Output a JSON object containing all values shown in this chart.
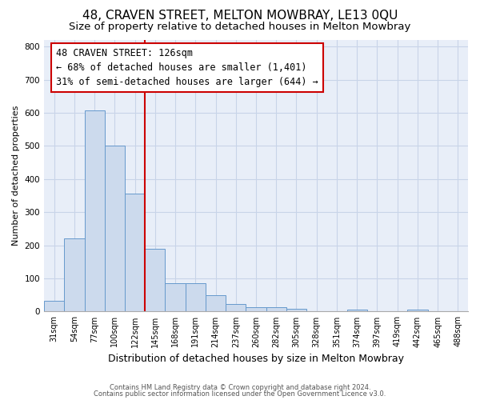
{
  "title1": "48, CRAVEN STREET, MELTON MOWBRAY, LE13 0QU",
  "title2": "Size of property relative to detached houses in Melton Mowbray",
  "xlabel": "Distribution of detached houses by size in Melton Mowbray",
  "ylabel": "Number of detached properties",
  "footer1": "Contains HM Land Registry data © Crown copyright and database right 2024.",
  "footer2": "Contains public sector information licensed under the Open Government Licence v3.0.",
  "categories": [
    "31sqm",
    "54sqm",
    "77sqm",
    "100sqm",
    "122sqm",
    "145sqm",
    "168sqm",
    "191sqm",
    "214sqm",
    "237sqm",
    "260sqm",
    "282sqm",
    "305sqm",
    "328sqm",
    "351sqm",
    "374sqm",
    "397sqm",
    "419sqm",
    "442sqm",
    "465sqm",
    "488sqm"
  ],
  "values": [
    32,
    220,
    608,
    500,
    355,
    190,
    85,
    85,
    50,
    22,
    14,
    14,
    8,
    0,
    0,
    6,
    0,
    0,
    6,
    0,
    0
  ],
  "bar_color": "#ccdaed",
  "bar_edge_color": "#6699cc",
  "annotation_line1": "48 CRAVEN STREET: 126sqm",
  "annotation_line2": "← 68% of detached houses are smaller (1,401)",
  "annotation_line3": "31% of semi-detached houses are larger (644) →",
  "annotation_box_color": "white",
  "annotation_box_edge": "#cc0000",
  "vline_color": "#cc0000",
  "vline_x_idx": 4.5,
  "ylim": [
    0,
    820
  ],
  "yticks": [
    0,
    100,
    200,
    300,
    400,
    500,
    600,
    700,
    800
  ],
  "grid_color": "#c8d4e8",
  "bg_color": "#e8eef8",
  "title1_fontsize": 11,
  "title2_fontsize": 9.5,
  "xlabel_fontsize": 9,
  "ylabel_fontsize": 8,
  "ann_fontsize": 8.5,
  "tick_fontsize": 7
}
